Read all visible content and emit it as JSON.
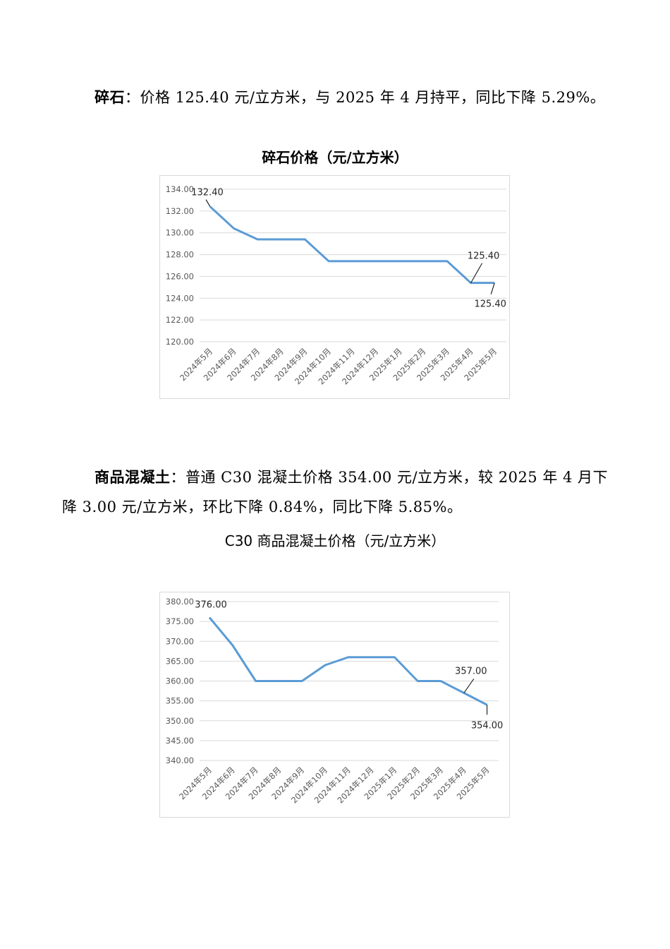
{
  "para1": {
    "lead": "碎石",
    "text": "：价格 125.40 元/立方米，与 2025 年 4 月持平，同比下降 5.29%。"
  },
  "chart1_title": "碎石价格（元/立方米）",
  "para2": {
    "lead": "商品混凝土",
    "text": "：普通 C30 混凝土价格 354.00 元/立方米，较 2025 年 4 月下降 3.00 元/立方米，环比下降 0.84%，同比下降 5.85%。"
  },
  "chart2_title": "C30 商品混凝土价格（元/立方米）",
  "chart_data": [
    {
      "type": "line",
      "title": "碎石价格（元/立方米）",
      "categories": [
        "2024年5月",
        "2024年6月",
        "2024年7月",
        "2024年8月",
        "2024年9月",
        "2024年10月",
        "2024年11月",
        "2024年12月",
        "2025年1月",
        "2025年2月",
        "2025年3月",
        "2025年4月",
        "2025年5月"
      ],
      "values": [
        132.4,
        130.4,
        129.4,
        129.4,
        129.4,
        127.4,
        127.4,
        127.4,
        127.4,
        127.4,
        127.4,
        125.4,
        125.4
      ],
      "ylim": [
        120.0,
        134.0
      ],
      "yticks": [
        "120.00",
        "122.00",
        "124.00",
        "126.00",
        "128.00",
        "130.00",
        "132.00",
        "134.00"
      ],
      "data_labels": [
        {
          "index": 0,
          "text": "132.40"
        },
        {
          "index": 11,
          "text": "125.40"
        },
        {
          "index": 12,
          "text": "125.40"
        }
      ],
      "line_color": "#5b9bd5",
      "grid": true
    },
    {
      "type": "line",
      "title": "C30 商品混凝土价格（元/立方米）",
      "categories": [
        "2024年5月",
        "2024年6月",
        "2024年7月",
        "2024年8月",
        "2024年9月",
        "2024年10月",
        "2024年11月",
        "2024年12月",
        "2025年1月",
        "2025年2月",
        "2025年3月",
        "2025年4月",
        "2025年5月"
      ],
      "values": [
        376.0,
        369.0,
        360.0,
        360.0,
        360.0,
        364.0,
        366.0,
        366.0,
        366.0,
        360.0,
        360.0,
        357.0,
        354.0
      ],
      "ylim": [
        340.0,
        380.0
      ],
      "yticks": [
        "340.00",
        "345.00",
        "350.00",
        "355.00",
        "360.00",
        "365.00",
        "370.00",
        "375.00",
        "380.00"
      ],
      "data_labels": [
        {
          "index": 0,
          "text": "376.00"
        },
        {
          "index": 11,
          "text": "357.00"
        },
        {
          "index": 12,
          "text": "354.00"
        }
      ],
      "line_color": "#5b9bd5",
      "grid": true
    }
  ]
}
